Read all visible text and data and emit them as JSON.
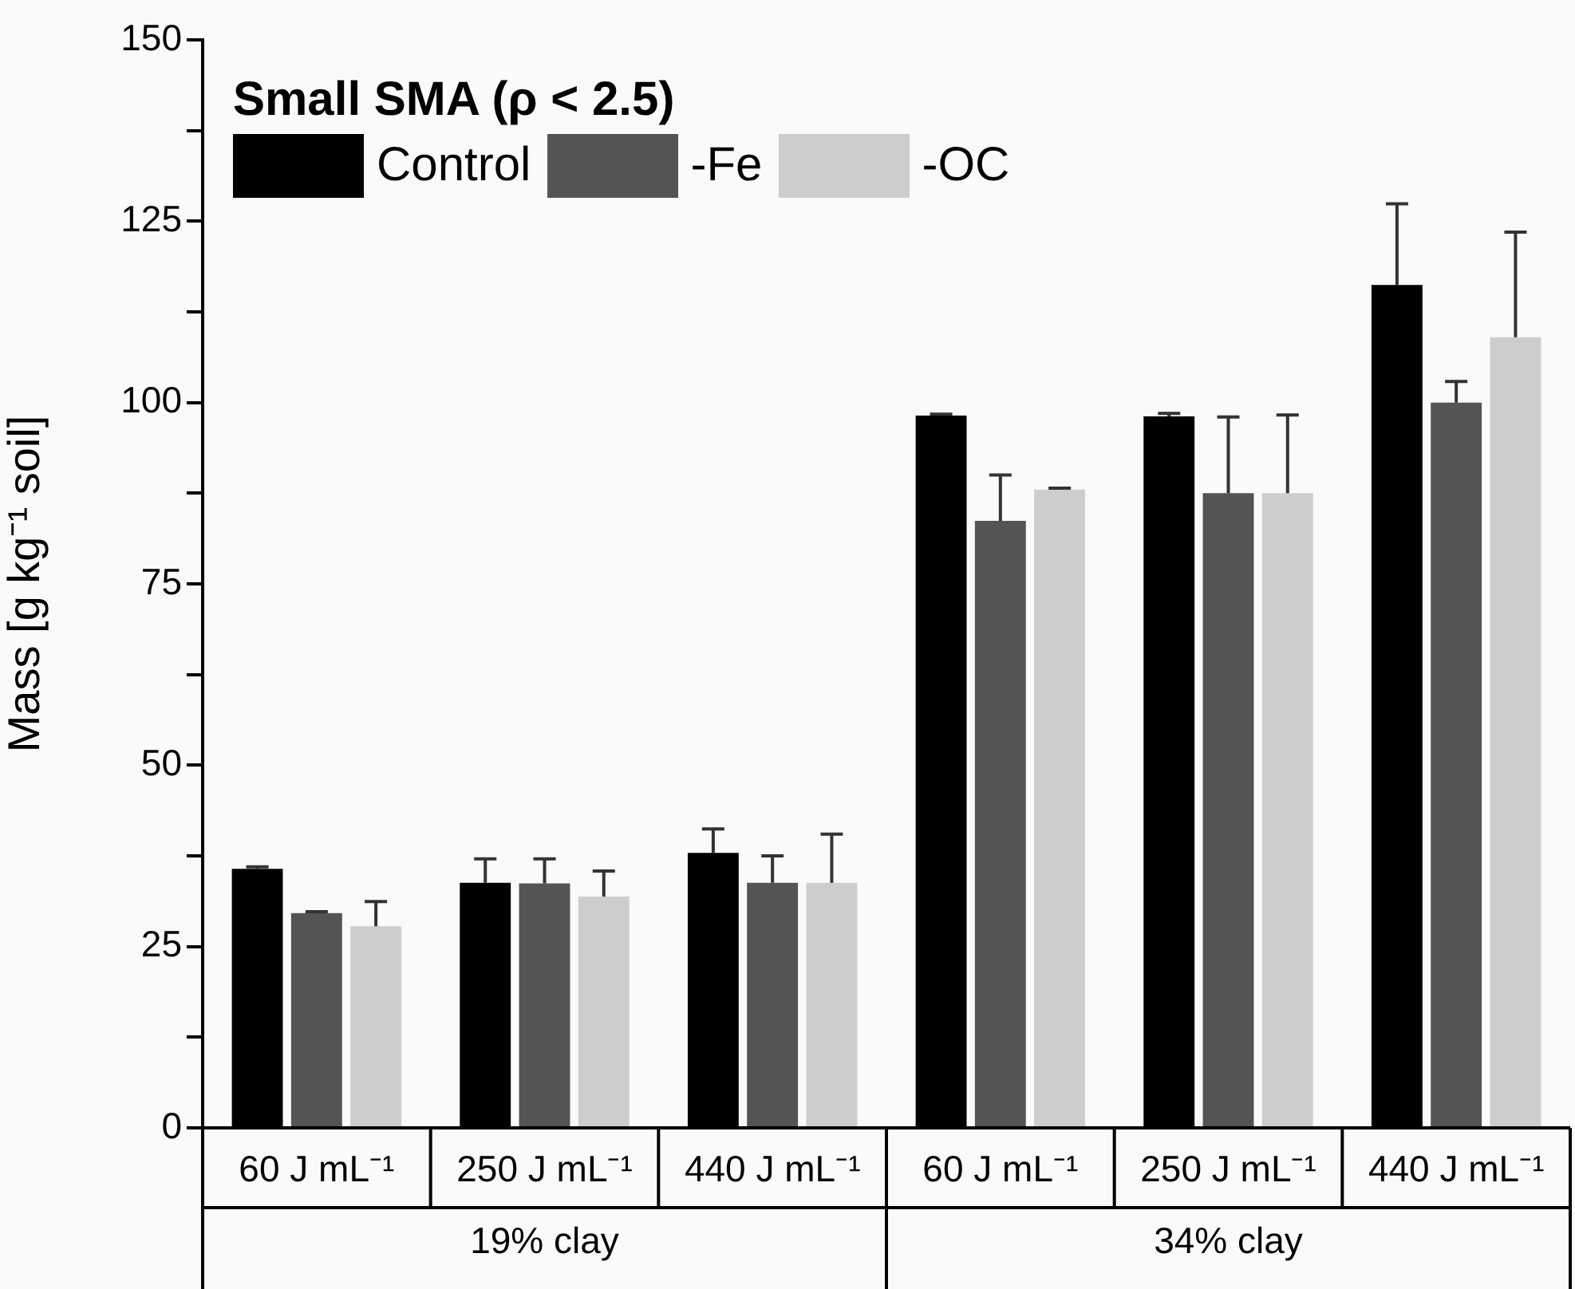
{
  "chart_data": {
    "type": "bar",
    "legend_title": "Small SMA (ρ < 2.5)",
    "ylabel": "Mass [g kg⁻¹ soil]",
    "categories": [
      "60 J mL⁻¹",
      "250 J mL⁻¹",
      "440 J mL⁻¹",
      "60 J mL⁻¹",
      "250 J mL⁻¹",
      "440 J mL⁻¹"
    ],
    "annotations": [
      "19% clay",
      "34% clay"
    ],
    "series": [
      {
        "name": "Control",
        "color": "#000000",
        "values": [
          35.7,
          33.8,
          37.9,
          98.2,
          98.1,
          116.2
        ],
        "errors": [
          [
            35.7,
            36.0
          ],
          [
            33.8,
            37.1
          ],
          [
            37.9,
            41.2
          ],
          [
            98.2,
            98.4
          ],
          [
            98.1,
            98.5
          ],
          [
            116.2,
            127.4
          ]
        ]
      },
      {
        "name": "-Fe",
        "color": "#545454",
        "values": [
          29.6,
          33.7,
          33.8,
          83.7,
          87.5,
          100.0
        ],
        "errors": [
          [
            29.6,
            29.8
          ],
          [
            33.7,
            37.1
          ],
          [
            33.8,
            37.5
          ],
          [
            83.7,
            90.0
          ],
          [
            87.5,
            98.0
          ],
          [
            100.0,
            102.9
          ]
        ]
      },
      {
        "name": "-OC",
        "color": "#cdcdcd",
        "values": [
          27.8,
          31.9,
          33.8,
          88.0,
          87.5,
          109.0
        ],
        "errors": [
          [
            27.8,
            31.2
          ],
          [
            31.9,
            35.4
          ],
          [
            33.8,
            40.5
          ],
          [
            88.0,
            88.2
          ],
          [
            87.5,
            98.3
          ],
          [
            109.0,
            123.5
          ]
        ]
      }
    ],
    "ylim": [
      0,
      150
    ],
    "yticks": [
      0,
      {
        "value": 12.5,
        "label": null
      },
      25,
      {
        "value": 37.5,
        "label": null
      },
      50,
      {
        "value": 62.5,
        "label": null
      },
      75,
      {
        "value": 87.5,
        "label": null
      },
      100,
      {
        "value": 112.5,
        "label": null
      },
      125,
      {
        "value": 137.5,
        "label": null
      },
      150
    ],
    "grid": false,
    "legend": "top left"
  }
}
